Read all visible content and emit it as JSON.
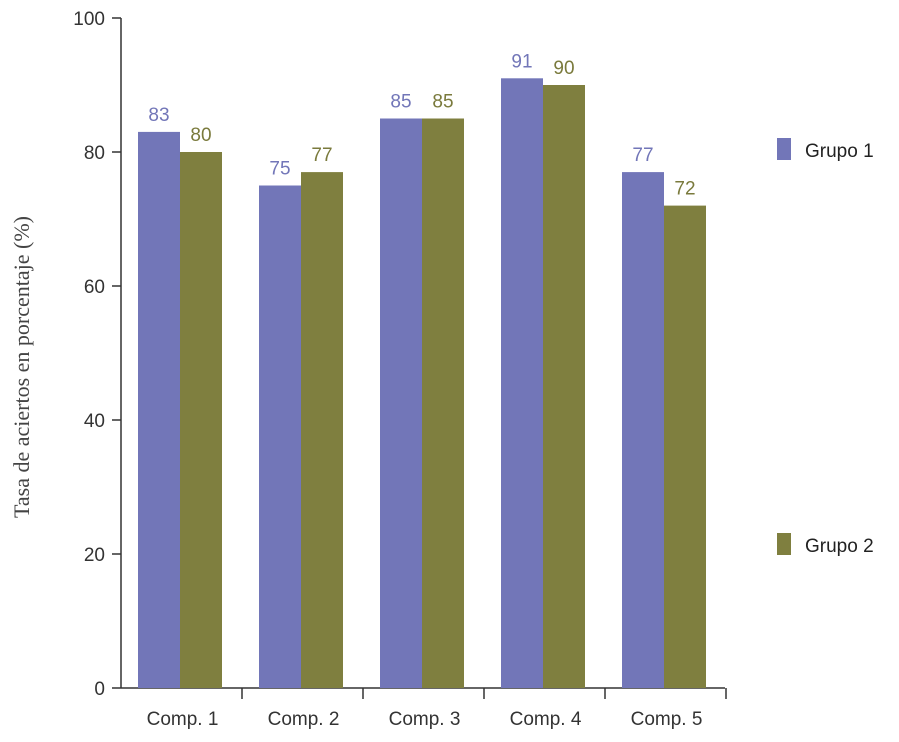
{
  "chart_data": {
    "type": "bar",
    "categories": [
      "Comp. 1",
      "Comp. 2",
      "Comp. 3",
      "Comp. 4",
      "Comp. 5"
    ],
    "series": [
      {
        "name": "Grupo 1",
        "values": [
          83,
          75,
          85,
          91,
          77
        ],
        "color": "#7276b8",
        "label_color": "#7276b8"
      },
      {
        "name": "Grupo 2",
        "values": [
          80,
          77,
          85,
          90,
          72
        ],
        "color": "#7f7f3f",
        "label_color": "#7a7a3c"
      }
    ],
    "ylabel": "Tasa de aciertos en porcentaje (%)",
    "xlabel": "",
    "title": "",
    "ylim": [
      0,
      100
    ],
    "yticks": [
      0,
      20,
      40,
      60,
      80,
      100
    ],
    "grid": false,
    "legend_position": "right"
  }
}
